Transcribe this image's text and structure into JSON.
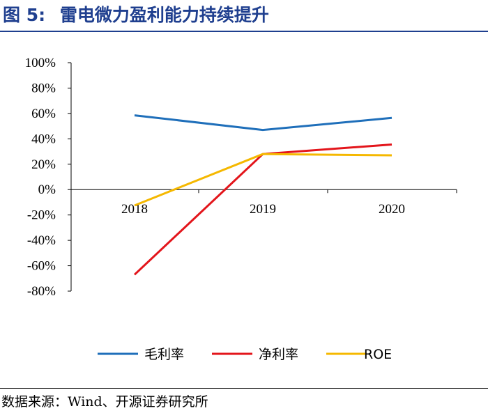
{
  "figure": {
    "number": "图 5:",
    "title": "雷电微力盈利能力持续提升",
    "source_label": "数据来源：",
    "source_text": "Wind、开源证券研究所"
  },
  "chart_data": {
    "type": "line",
    "title": "雷电微力盈利能力持续提升",
    "categories": [
      "2018",
      "2019",
      "2020"
    ],
    "xlabel": "",
    "ylabel": "",
    "ylim": [
      -80,
      100
    ],
    "yticks": [
      100,
      80,
      60,
      40,
      20,
      0,
      -20,
      -40,
      -60,
      -80
    ],
    "ytick_labels": [
      "100%",
      "80%",
      "60%",
      "40%",
      "20%",
      "0%",
      "-20%",
      "-40%",
      "-60%",
      "-80%"
    ],
    "grid": false,
    "legend_position": "bottom",
    "series": [
      {
        "name": "毛利率",
        "color": "#1f6fba",
        "values": [
          58.5,
          47,
          56.5
        ]
      },
      {
        "name": "净利率",
        "color": "#e3151b",
        "values": [
          -67,
          28,
          35.5
        ]
      },
      {
        "name": "ROE",
        "color": "#f5b800",
        "values": [
          -12.5,
          28,
          27
        ]
      }
    ]
  }
}
